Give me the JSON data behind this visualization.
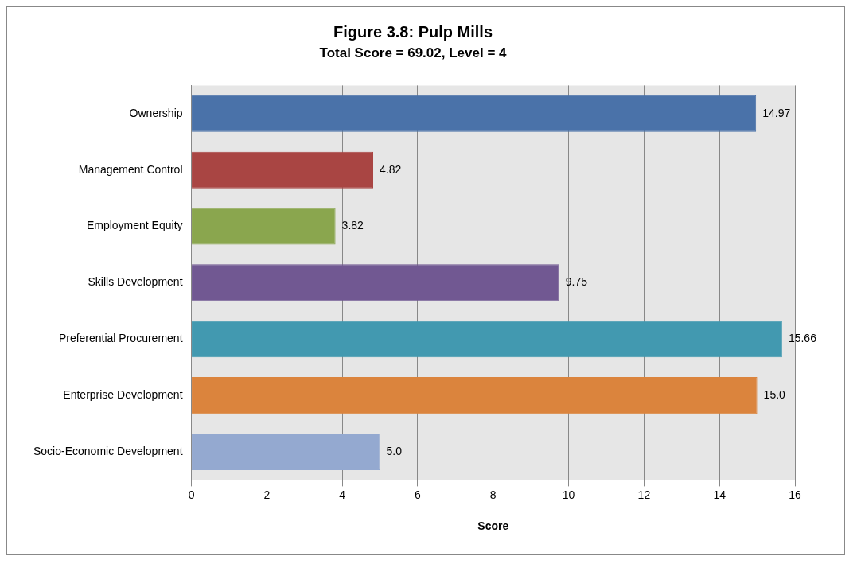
{
  "chart_data": {
    "type": "bar",
    "orientation": "horizontal",
    "title": "Figure 3.8: Pulp Mills",
    "subtitle": "Total Score = 69.02, Level = 4",
    "xlabel": "Score",
    "categories": [
      "Ownership",
      "Management Control",
      "Employment Equity",
      "Skills Development",
      "Preferential Procurement",
      "Enterprise Development",
      "Socio-Economic Development"
    ],
    "values": [
      14.97,
      4.82,
      3.82,
      9.75,
      15.66,
      15.0,
      5.0
    ],
    "value_labels": [
      "14.97",
      "4.82",
      "3.82",
      "9.75",
      "15.66",
      "15.0",
      "5.0"
    ],
    "colors": [
      "#4a72a9",
      "#a94543",
      "#8aa64e",
      "#715892",
      "#4299b0",
      "#db843d",
      "#94a9d0"
    ],
    "xlim": [
      0,
      16
    ],
    "xticks": [
      0,
      2,
      4,
      6,
      8,
      10,
      12,
      14,
      16
    ],
    "grid": "x",
    "legend": false
  }
}
